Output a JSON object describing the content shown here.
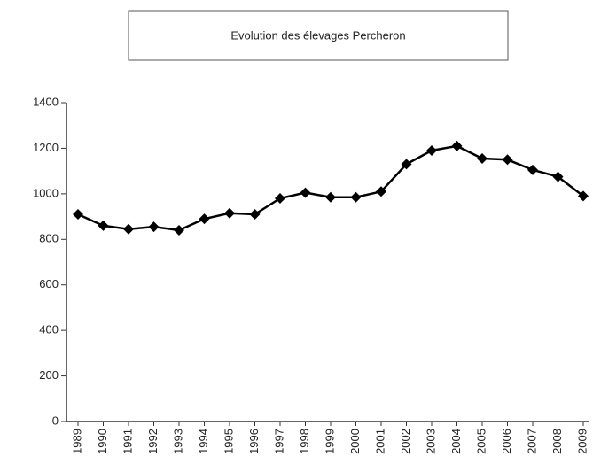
{
  "chart_data": {
    "type": "line",
    "title": "Evolution des élevages Percheron",
    "categories": [
      "1989",
      "1990",
      "1991",
      "1992",
      "1993",
      "1994",
      "1995",
      "1996",
      "1997",
      "1998",
      "1999",
      "2000",
      "2001",
      "2002",
      "2003",
      "2004",
      "2005",
      "2006",
      "2007",
      "2008",
      "2009"
    ],
    "values": [
      910,
      860,
      845,
      855,
      840,
      890,
      915,
      910,
      980,
      1005,
      985,
      985,
      1010,
      1130,
      1190,
      1210,
      1155,
      1150,
      1105,
      1075,
      990
    ],
    "color": "#000000",
    "ylim": [
      0,
      1400
    ],
    "yticks": [
      0,
      200,
      400,
      600,
      800,
      1000,
      1200,
      1400
    ],
    "grid": false
  }
}
